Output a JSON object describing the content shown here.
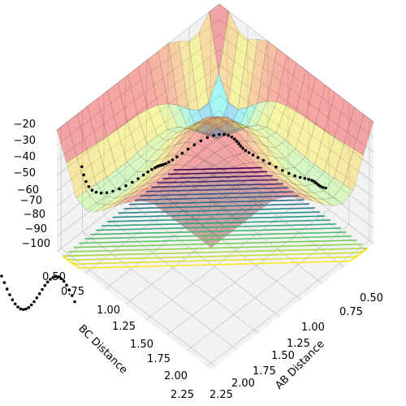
{
  "chart_data": {
    "type": "surface-3d",
    "xlabel": "AB Distance",
    "ylabel": "BC Distance",
    "zlabel": "",
    "x_ticks": [
      "0.50",
      "0.75",
      "1.00",
      "1.25",
      "1.50",
      "1.75",
      "2.00",
      "2.25"
    ],
    "y_ticks": [
      "0.50",
      "0.75",
      "1.00",
      "1.25",
      "1.50",
      "1.75",
      "2.00",
      "2.25"
    ],
    "z_ticks": [
      "−20",
      "−30",
      "−40",
      "−50",
      "−60",
      "−70",
      "−80",
      "−90",
      "−100"
    ],
    "xlim": [
      0.4,
      2.3
    ],
    "ylim": [
      0.4,
      2.3
    ],
    "zlim": [
      -100,
      -20
    ],
    "surface_colormap": "jet (translucent)",
    "contour_colormap": "viridis",
    "scatter_color": "#000000",
    "grid": true,
    "pane_color": "#f2f2f2",
    "grid_color": "#c8c8c8"
  }
}
